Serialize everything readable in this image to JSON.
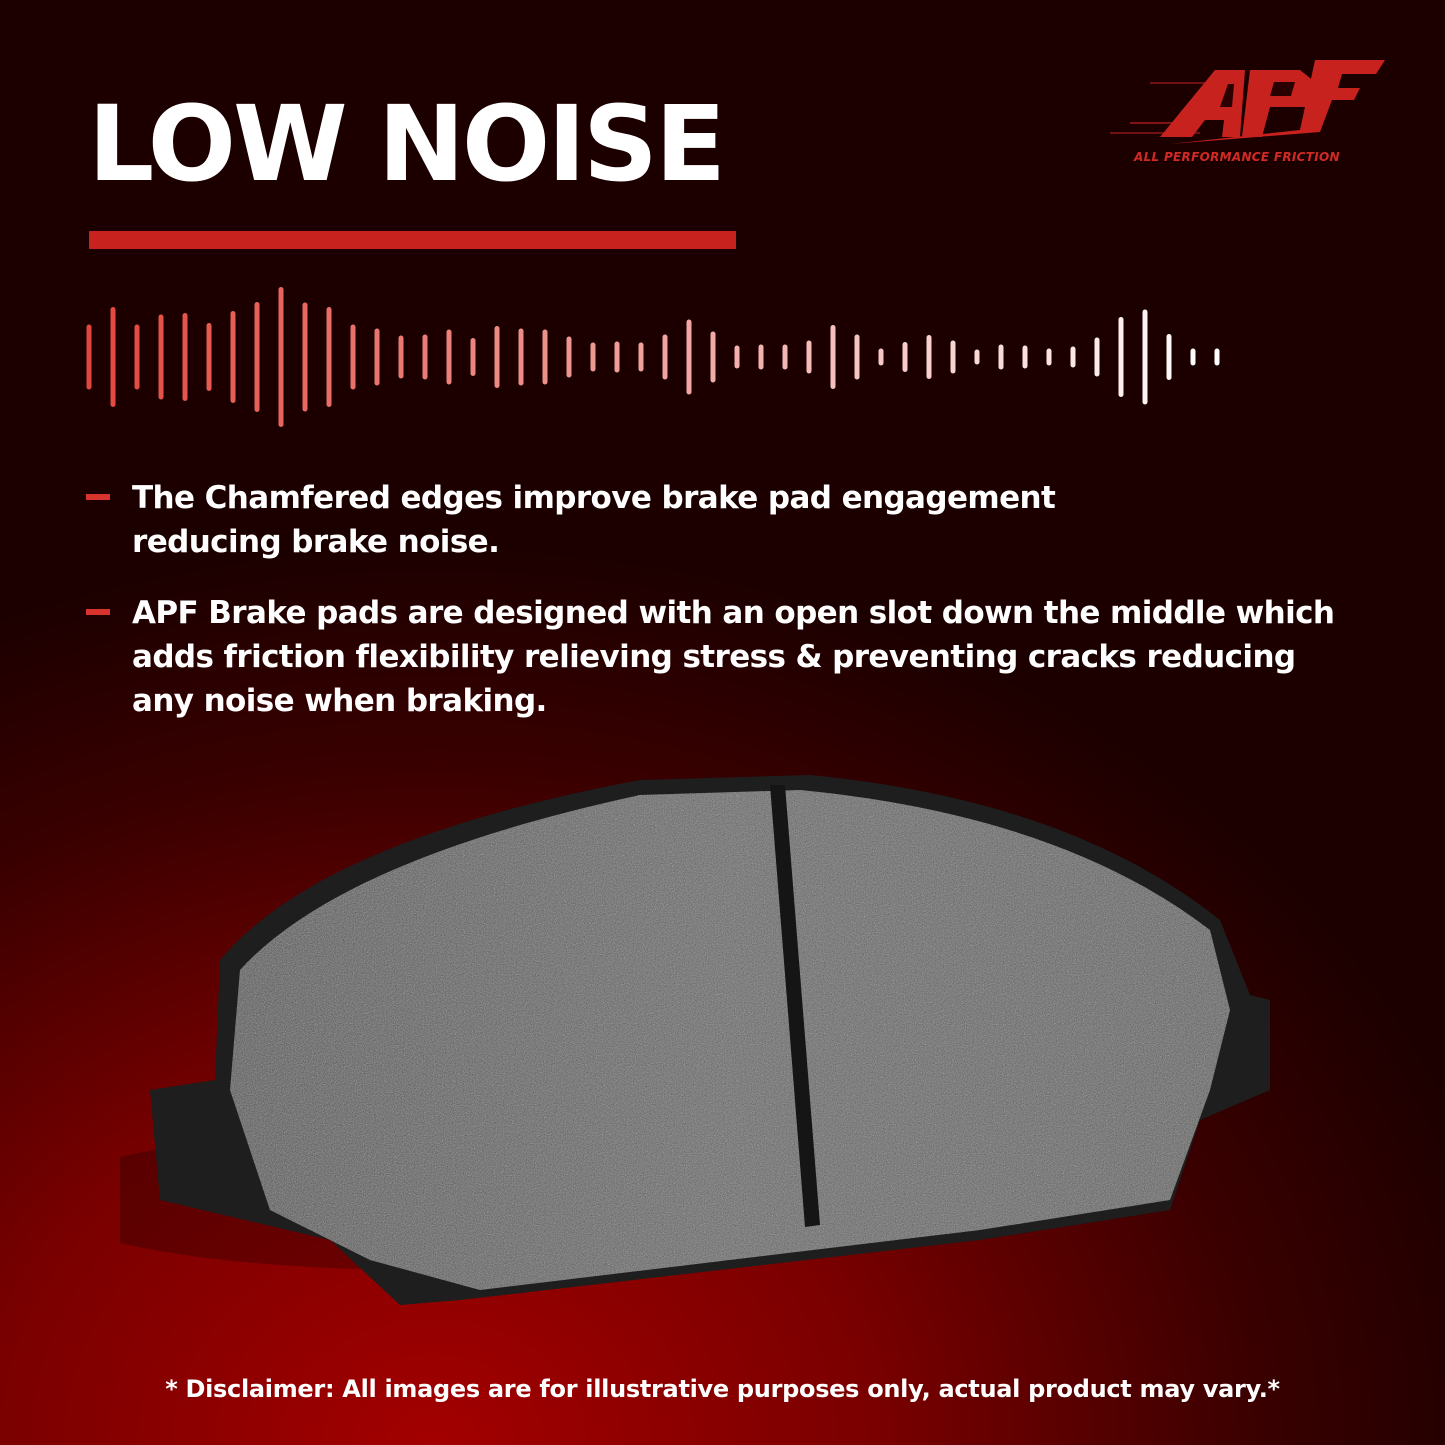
{
  "title": "LOW NOISE",
  "logo": {
    "wordmark": "APF",
    "tagline": "ALL PERFORMANCE FRICTION",
    "color": "#c8221f"
  },
  "bullets": [
    "The Chamfered edges improve brake pad engagement reducing brake noise.",
    "APF Brake pads are designed with an open slot down the middle which adds friction flexibility relieving stress & preventing cracks reducing any noise when braking."
  ],
  "icons": {
    "waveform": "sound-wave-icon",
    "bullet": "dash-bullet-icon"
  },
  "colors": {
    "accent": "#c8221f",
    "background": "#7a0000",
    "text": "#ffffff"
  },
  "disclaimer": "* Disclaimer: All images are for illustrative purposes only, actual product may vary.*"
}
